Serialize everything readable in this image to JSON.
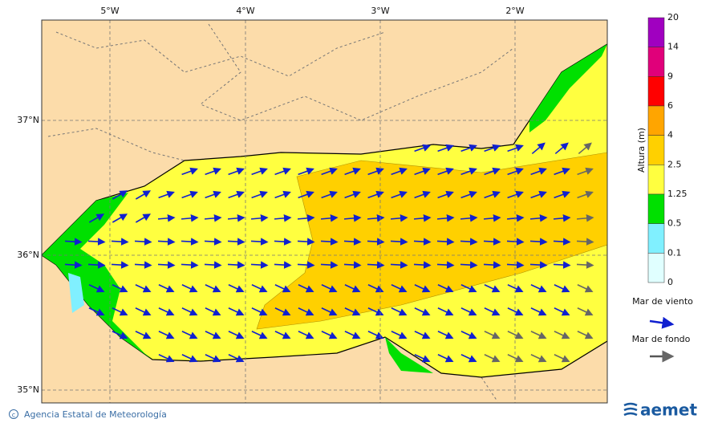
{
  "map": {
    "lon_ticks": [
      "5°W",
      "4°W",
      "3°W",
      "2°W"
    ],
    "lat_ticks": [
      "37°N",
      "36°N",
      "35°N"
    ]
  },
  "colorbar": {
    "title": "Altura (m)",
    "levels": [
      "20",
      "14",
      "9",
      "6",
      "4",
      "2.5",
      "1.25",
      "0.5",
      "0.1",
      "0"
    ]
  },
  "legend": {
    "wind_sea": "Mar de viento",
    "swell": "Mar de fondo"
  },
  "footer": {
    "credit": "Agencia Estatal de Meteorología",
    "logo": "aemet"
  }
}
